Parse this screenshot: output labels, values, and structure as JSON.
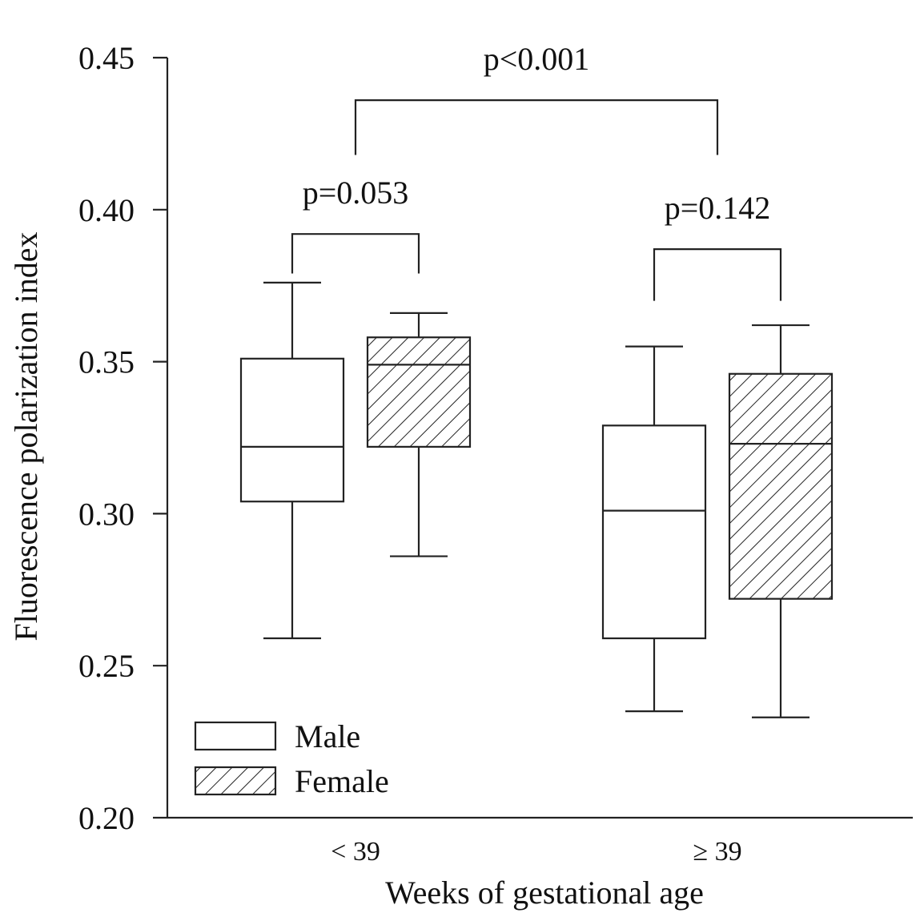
{
  "chart_data": {
    "type": "box",
    "title": "",
    "xlabel": "Weeks of gestational age",
    "ylabel": "Fluorescence polarization index",
    "ylim": [
      0.2,
      0.45
    ],
    "yticks": [
      {
        "value": 0.2,
        "label": "0.20"
      },
      {
        "value": 0.25,
        "label": "0.25"
      },
      {
        "value": 0.3,
        "label": "0.30"
      },
      {
        "value": 0.35,
        "label": "0.35"
      },
      {
        "value": 0.4,
        "label": "0.40"
      },
      {
        "value": 0.45,
        "label": "0.45"
      }
    ],
    "categories": [
      "< 39",
      "≥ 39"
    ],
    "series": [
      {
        "name": "Male",
        "fill": "none",
        "boxes": [
          {
            "category": "< 39",
            "whisker_low": 0.259,
            "q1": 0.304,
            "median": 0.322,
            "q3": 0.351,
            "whisker_high": 0.376
          },
          {
            "category": "≥ 39",
            "whisker_low": 0.235,
            "q1": 0.259,
            "median": 0.301,
            "q3": 0.329,
            "whisker_high": 0.355
          }
        ]
      },
      {
        "name": "Female",
        "fill": "hatched",
        "boxes": [
          {
            "category": "< 39",
            "whisker_low": 0.286,
            "q1": 0.322,
            "median": 0.349,
            "q3": 0.358,
            "whisker_high": 0.366
          },
          {
            "category": "≥ 39",
            "whisker_low": 0.233,
            "q1": 0.272,
            "median": 0.323,
            "q3": 0.346,
            "whisker_high": 0.362
          }
        ]
      }
    ],
    "annotations": [
      {
        "label": "p=0.053",
        "between": [
          "< 39 Male",
          "< 39 Female"
        ],
        "bracket_top": 0.392,
        "bracket_bottom": 0.379
      },
      {
        "label": "p=0.142",
        "between": [
          "≥ 39 Male",
          "≥ 39 Female"
        ],
        "bracket_top": 0.387,
        "bracket_bottom": 0.37
      },
      {
        "label": "p<0.001",
        "between": [
          "< 39",
          "≥ 39"
        ],
        "bracket_top": 0.436,
        "bracket_bottom": 0.418
      }
    ],
    "legend": {
      "placement": "bottom-left",
      "entries": [
        "Male",
        "Female"
      ]
    },
    "grid": false,
    "colors": {
      "ink": "#222222",
      "background": "#ffffff"
    }
  }
}
